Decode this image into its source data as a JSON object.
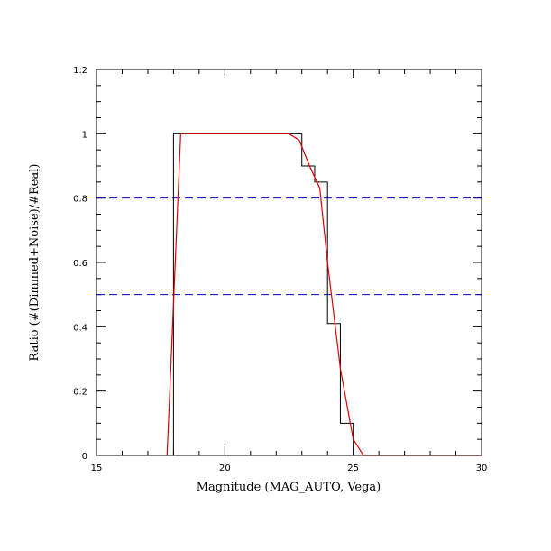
{
  "chart_data": {
    "type": "line",
    "title": "",
    "xlabel": "Magnitude (MAG_AUTO, Vega)",
    "ylabel": "Ratio (#(Dimmed+Noise)/#Real)",
    "xlim": [
      15,
      30
    ],
    "ylim": [
      0,
      1.2
    ],
    "x_ticks": [
      15,
      20,
      25,
      30
    ],
    "x_tick_labels": [
      "15",
      "20",
      "25",
      "30"
    ],
    "y_ticks": [
      0,
      0.2,
      0.4,
      0.6,
      0.8,
      1,
      1.2
    ],
    "y_tick_labels": [
      "0",
      "0.2",
      "0.4",
      "0.6",
      "0.8",
      "1",
      "1.2"
    ],
    "grid": false,
    "series": [
      {
        "kind": "step-histogram",
        "color": "#000000",
        "bins": [
          {
            "x0": 15.0,
            "x1": 18.0,
            "y": 0.0
          },
          {
            "x0": 18.0,
            "x1": 23.0,
            "y": 1.0
          },
          {
            "x0": 23.0,
            "x1": 23.5,
            "y": 0.9
          },
          {
            "x0": 23.5,
            "x1": 24.0,
            "y": 0.85
          },
          {
            "x0": 24.0,
            "x1": 24.5,
            "y": 0.41
          },
          {
            "x0": 24.5,
            "x1": 25.0,
            "y": 0.1
          },
          {
            "x0": 25.0,
            "x1": 30.0,
            "y": 0.0
          }
        ]
      },
      {
        "kind": "fit-curve",
        "color": "#dd0000",
        "x": [
          17.75,
          18.28,
          22.5,
          22.9,
          23.3,
          23.7,
          24.0,
          24.5,
          25.0,
          25.4,
          30.0
        ],
        "y": [
          0.0,
          1.0,
          1.0,
          0.98,
          0.9,
          0.83,
          0.6,
          0.27,
          0.05,
          0.0,
          0.0
        ]
      }
    ],
    "reference_lines": [
      {
        "y": 0.8,
        "color": "#0000cc",
        "style": "dashed"
      },
      {
        "y": 0.5,
        "color": "#0000cc",
        "style": "dashed"
      }
    ]
  }
}
